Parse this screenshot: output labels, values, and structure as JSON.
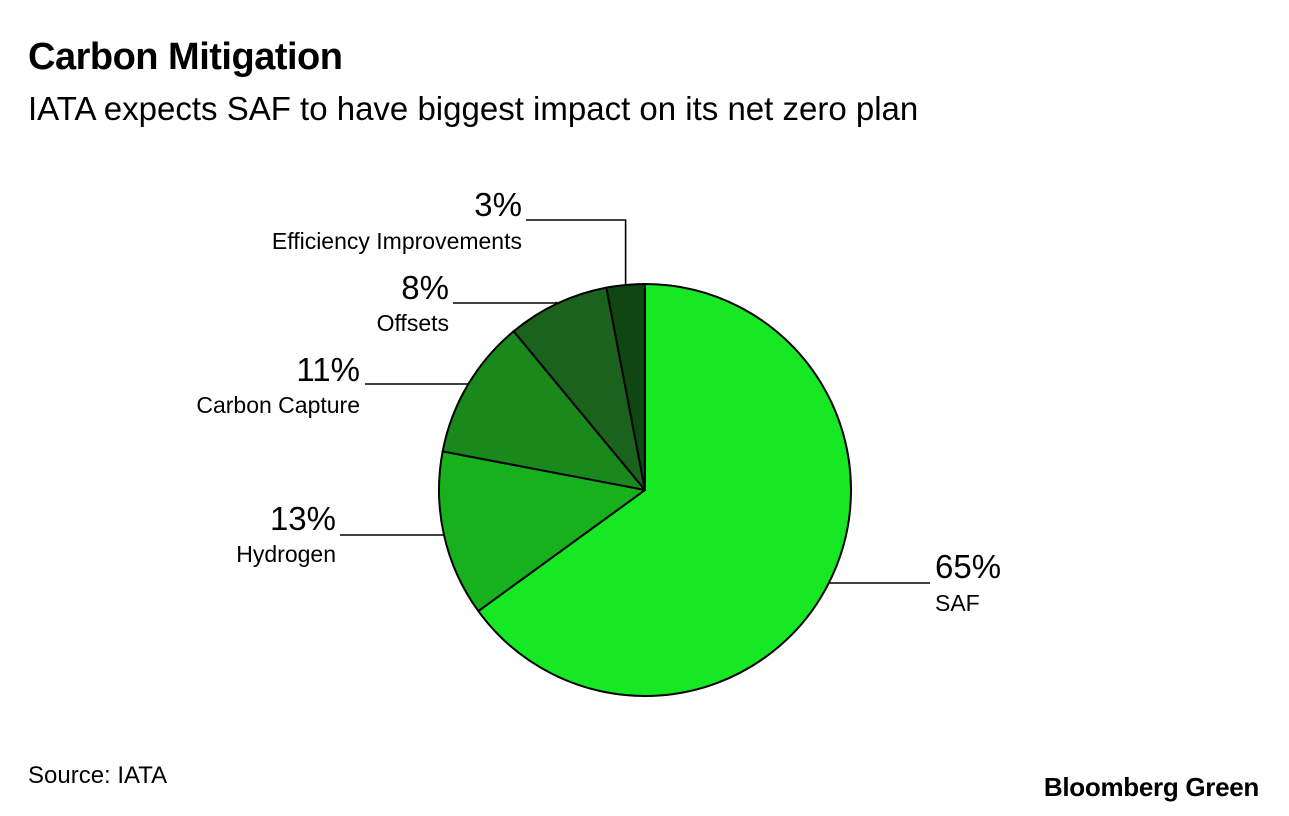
{
  "header": {
    "title": "Carbon Mitigation",
    "subtitle": "IATA expects SAF to have biggest impact on its net zero plan"
  },
  "footer": {
    "source": "Source: IATA",
    "brand": "Bloomberg Green"
  },
  "chart_data": {
    "type": "pie",
    "title": "Carbon Mitigation",
    "subtitle": "IATA expects SAF to have biggest impact on its net zero plan",
    "slices": [
      {
        "label": "SAF",
        "value": 65,
        "value_label": "65%",
        "color": "#16e824"
      },
      {
        "label": "Hydrogen",
        "value": 13,
        "value_label": "13%",
        "color": "#16b11c"
      },
      {
        "label": "Carbon Capture",
        "value": 11,
        "value_label": "11%",
        "color": "#19891b"
      },
      {
        "label": "Offsets",
        "value": 8,
        "value_label": "8%",
        "color": "#1b631d"
      },
      {
        "label": "Efficiency Improvements",
        "value": 3,
        "value_label": "3%",
        "color": "#0f4611"
      }
    ],
    "legend": "direct labels with leader lines",
    "start": "12 o'clock, clockwise"
  }
}
